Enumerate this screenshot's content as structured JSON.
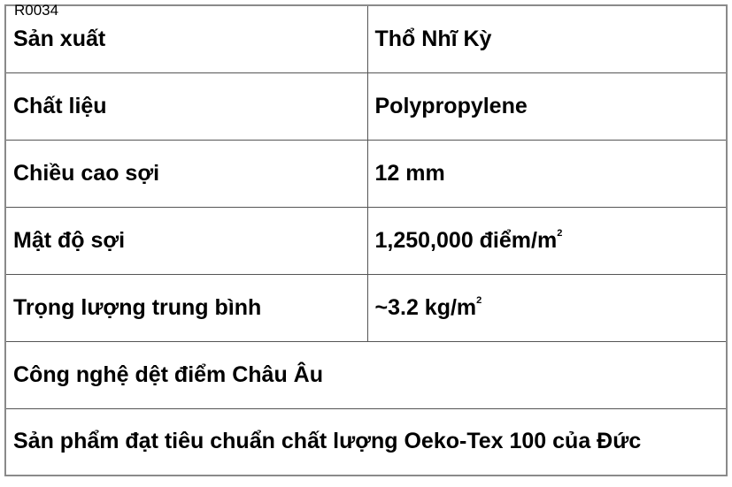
{
  "code": "R0034",
  "rows": [
    {
      "label": "Sản xuất",
      "value": "Thổ Nhĩ Kỳ"
    },
    {
      "label": "Chất liệu",
      "value": "Polypropylene"
    },
    {
      "label": "Chiều cao sợi",
      "value": "12 mm"
    },
    {
      "label": "Mật độ sợi",
      "value": "1,250,000 điểm/m",
      "sup": "2"
    },
    {
      "label": "Trọng lượng trung bình",
      "value": "~3.2 kg/m",
      "sup": "2"
    }
  ],
  "full_rows": [
    "Công nghệ dệt điểm Châu Âu",
    "Sản phẩm đạt tiêu chuẩn chất lượng Oeko-Tex 100 của Đức"
  ]
}
